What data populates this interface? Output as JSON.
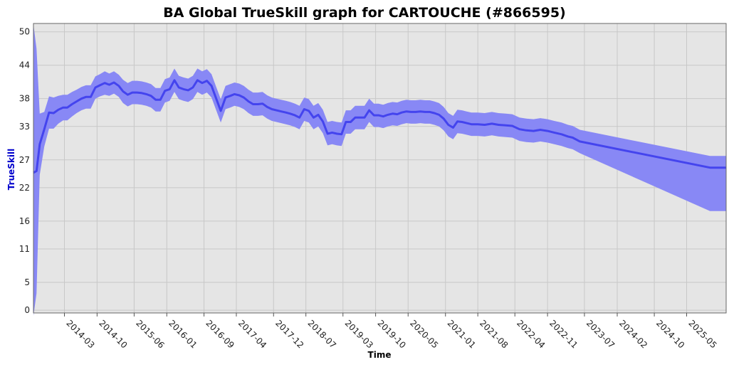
{
  "chart_data": {
    "type": "area",
    "title": "BA Global TrueSkill graph for CARTOUCHE (#866595)",
    "xlabel": "Time",
    "ylabel": "TrueSkill",
    "ylim": [
      -0.5,
      51.5
    ],
    "xlim": [
      "2013-08-10",
      "2026-01-15"
    ],
    "y_ticks": [
      0,
      5,
      11,
      16,
      22,
      27,
      33,
      38,
      44,
      50
    ],
    "x_ticks": [
      "2014-03",
      "2014-10",
      "2015-06",
      "2016-01",
      "2016-09",
      "2017-04",
      "2017-12",
      "2018-07",
      "2019-03",
      "2019-10",
      "2020-05",
      "2021-01",
      "2021-08",
      "2022-04",
      "2022-11",
      "2023-07",
      "2024-02",
      "2024-10",
      "2025-05"
    ],
    "grid": true,
    "colors": {
      "band": "#8888f5",
      "line": "#4444ee",
      "plot_background": "#e5e5e5",
      "grid": "#c8c8c8",
      "ylabel": "#0000cc"
    },
    "series": [
      {
        "x": [
          "2013-08-10",
          "2013-08-30",
          "2013-09-20",
          "2013-10-20",
          "2013-11-20",
          "2013-12-20",
          "2014-01-20",
          "2014-02-20",
          "2014-03-20",
          "2014-04-20",
          "2014-05-20",
          "2014-06-20",
          "2014-07-20",
          "2014-08-20",
          "2014-09-20",
          "2014-10-20",
          "2014-11-20",
          "2014-12-20",
          "2015-01-20",
          "2015-02-20",
          "2015-03-20",
          "2015-04-20",
          "2015-05-20",
          "2015-06-20",
          "2015-07-20",
          "2015-08-20",
          "2015-09-20",
          "2015-10-20",
          "2015-11-20",
          "2015-12-20",
          "2016-01-20",
          "2016-02-20",
          "2016-03-20",
          "2016-04-20",
          "2016-05-20",
          "2016-06-20",
          "2016-07-20",
          "2016-08-20",
          "2016-09-20",
          "2016-10-20",
          "2016-11-20",
          "2016-12-20",
          "2017-01-20",
          "2017-02-20",
          "2017-03-20",
          "2017-04-20",
          "2017-05-20",
          "2017-06-20",
          "2017-07-20",
          "2017-08-20",
          "2017-09-20",
          "2017-10-20",
          "2017-11-20",
          "2017-12-20",
          "2018-01-20",
          "2018-02-20",
          "2018-03-20",
          "2018-04-20",
          "2018-05-20",
          "2018-06-20",
          "2018-07-20",
          "2018-08-20",
          "2018-09-20",
          "2018-10-20",
          "2018-11-20",
          "2018-12-20",
          "2019-01-20",
          "2019-02-20",
          "2019-03-20",
          "2019-04-20",
          "2019-05-20",
          "2019-06-20",
          "2019-07-20",
          "2019-08-20",
          "2019-09-20",
          "2019-10-20",
          "2019-11-20",
          "2019-12-20",
          "2020-01-20",
          "2020-02-20",
          "2020-03-20",
          "2020-04-20",
          "2020-05-20",
          "2020-06-20",
          "2020-07-20",
          "2020-08-20",
          "2020-09-20",
          "2020-10-20",
          "2020-11-20",
          "2020-12-20",
          "2021-01-20",
          "2021-02-20",
          "2021-03-20",
          "2021-04-20",
          "2021-05-20",
          "2021-06-20",
          "2021-08-01",
          "2021-09-15",
          "2021-11-01",
          "2021-12-15",
          "2022-02-01",
          "2022-03-15",
          "2022-05-01",
          "2022-06-15",
          "2022-08-01",
          "2022-09-15",
          "2022-11-01",
          "2022-12-15",
          "2023-02-01",
          "2023-03-15",
          "2023-04-15",
          "2023-06-01",
          "2025-10-01",
          "2026-01-15"
        ],
        "mean": [
          24.7,
          25.0,
          29.8,
          32.5,
          35.5,
          35.4,
          36.0,
          36.4,
          36.4,
          37.0,
          37.5,
          38.0,
          38.3,
          38.3,
          40.0,
          40.4,
          40.8,
          40.5,
          40.9,
          40.3,
          39.3,
          38.7,
          39.1,
          39.1,
          39.0,
          38.8,
          38.5,
          37.8,
          37.8,
          39.4,
          39.7,
          41.3,
          40.0,
          39.7,
          39.5,
          40.0,
          41.3,
          40.8,
          41.2,
          40.3,
          38.0,
          35.8,
          38.2,
          38.5,
          38.8,
          38.6,
          38.2,
          37.5,
          37.0,
          37.0,
          37.1,
          36.5,
          36.1,
          35.9,
          35.7,
          35.5,
          35.3,
          35.0,
          34.6,
          36.1,
          35.8,
          34.6,
          35.1,
          33.9,
          31.7,
          31.9,
          31.7,
          31.6,
          33.8,
          33.8,
          34.6,
          34.6,
          34.6,
          35.9,
          35.0,
          35.0,
          34.8,
          35.1,
          35.3,
          35.2,
          35.5,
          35.7,
          35.6,
          35.6,
          35.7,
          35.6,
          35.6,
          35.4,
          35.1,
          34.4,
          33.3,
          32.8,
          33.9,
          33.8,
          33.6,
          33.4,
          33.4,
          33.3,
          33.5,
          33.3,
          33.2,
          33.1,
          32.5,
          32.3,
          32.2,
          32.4,
          32.2,
          31.9,
          31.6,
          31.2,
          31.0,
          30.3,
          25.6,
          25.6
        ],
        "upper": [
          51.3,
          47.0,
          35.3,
          35.6,
          38.4,
          38.2,
          38.5,
          38.7,
          38.7,
          39.2,
          39.6,
          40.1,
          40.4,
          40.4,
          42.0,
          42.4,
          42.9,
          42.5,
          42.9,
          42.3,
          41.4,
          40.8,
          41.2,
          41.2,
          41.1,
          40.9,
          40.6,
          39.9,
          39.9,
          41.5,
          41.8,
          43.4,
          42.1,
          41.8,
          41.6,
          42.1,
          43.4,
          42.9,
          43.3,
          42.4,
          40.1,
          37.9,
          40.3,
          40.6,
          40.9,
          40.7,
          40.3,
          39.6,
          39.1,
          39.1,
          39.2,
          38.6,
          38.2,
          38.0,
          37.8,
          37.6,
          37.4,
          37.1,
          36.7,
          38.2,
          37.9,
          36.7,
          37.2,
          36.0,
          33.8,
          34.0,
          33.8,
          33.7,
          35.9,
          35.9,
          36.7,
          36.7,
          36.7,
          38.0,
          37.1,
          37.1,
          36.9,
          37.2,
          37.4,
          37.3,
          37.6,
          37.8,
          37.7,
          37.7,
          37.8,
          37.7,
          37.7,
          37.5,
          37.2,
          36.5,
          35.4,
          34.9,
          36.0,
          35.9,
          35.7,
          35.5,
          35.5,
          35.4,
          35.6,
          35.4,
          35.3,
          35.2,
          34.6,
          34.4,
          34.3,
          34.5,
          34.3,
          34.0,
          33.7,
          33.3,
          33.1,
          32.4,
          27.7,
          27.7
        ],
        "lower": [
          -1.0,
          3.0,
          24.3,
          29.4,
          32.6,
          32.6,
          33.5,
          34.1,
          34.1,
          34.8,
          35.4,
          35.9,
          36.2,
          36.2,
          38.0,
          38.4,
          38.7,
          38.5,
          38.9,
          38.3,
          37.2,
          36.6,
          37.0,
          37.0,
          36.9,
          36.7,
          36.4,
          35.7,
          35.7,
          37.3,
          37.6,
          39.2,
          37.9,
          37.6,
          37.4,
          37.9,
          39.2,
          38.7,
          39.1,
          38.2,
          35.9,
          33.7,
          36.1,
          36.4,
          36.7,
          36.5,
          36.1,
          35.4,
          34.9,
          34.9,
          35.0,
          34.4,
          34.0,
          33.8,
          33.6,
          33.4,
          33.2,
          32.9,
          32.5,
          34.0,
          33.7,
          32.5,
          33.0,
          31.8,
          29.6,
          29.8,
          29.6,
          29.5,
          31.7,
          31.7,
          32.5,
          32.5,
          32.5,
          33.8,
          32.9,
          32.9,
          32.7,
          33.0,
          33.2,
          33.1,
          33.4,
          33.6,
          33.5,
          33.5,
          33.6,
          33.5,
          33.5,
          33.3,
          33.0,
          32.3,
          31.2,
          30.7,
          31.8,
          31.7,
          31.5,
          31.3,
          31.3,
          31.2,
          31.4,
          31.2,
          31.1,
          31.0,
          30.4,
          30.2,
          30.1,
          30.3,
          30.1,
          29.8,
          29.5,
          29.1,
          28.9,
          28.2,
          17.8,
          17.8
        ]
      }
    ]
  }
}
